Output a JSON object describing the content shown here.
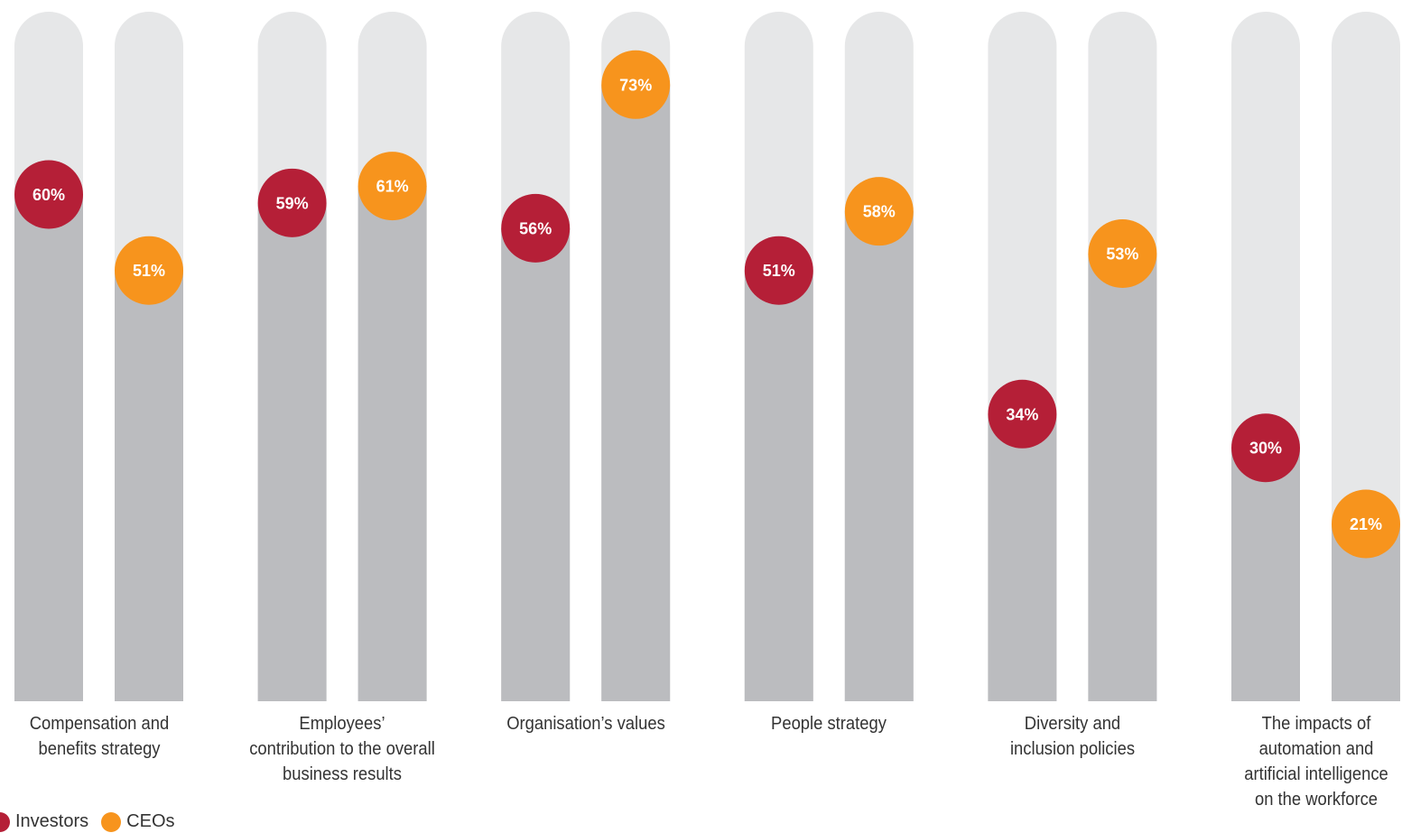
{
  "chart_data": {
    "type": "bar",
    "categories": [
      "Compensation and\nbenefits strategy",
      "Employees’\ncontribution to the overall\nbusiness results",
      "Organisation’s values",
      "People strategy",
      "Diversity and\ninclusion policies",
      "The impacts of\nautomation and\nartificial intelligence\non the workforce"
    ],
    "series": [
      {
        "name": "Investors",
        "values": [
          60,
          59,
          56,
          51,
          34,
          30
        ],
        "labels": [
          "60%",
          "59%",
          "56%",
          "51%",
          "34%",
          "30%"
        ],
        "color": "#B51F37"
      },
      {
        "name": "CEOs",
        "values": [
          51,
          61,
          73,
          58,
          53,
          21
        ],
        "labels": [
          "51%",
          "61%",
          "73%",
          "58%",
          "53%",
          "21%"
        ],
        "color": "#F7941D"
      }
    ],
    "ylim": [
      0,
      78
    ],
    "track_color": "#E6E7E8",
    "fill_color": "#BBBCBF",
    "grid": false,
    "legend_position": "bottom-left",
    "title": "",
    "xlabel": "",
    "ylabel": ""
  }
}
